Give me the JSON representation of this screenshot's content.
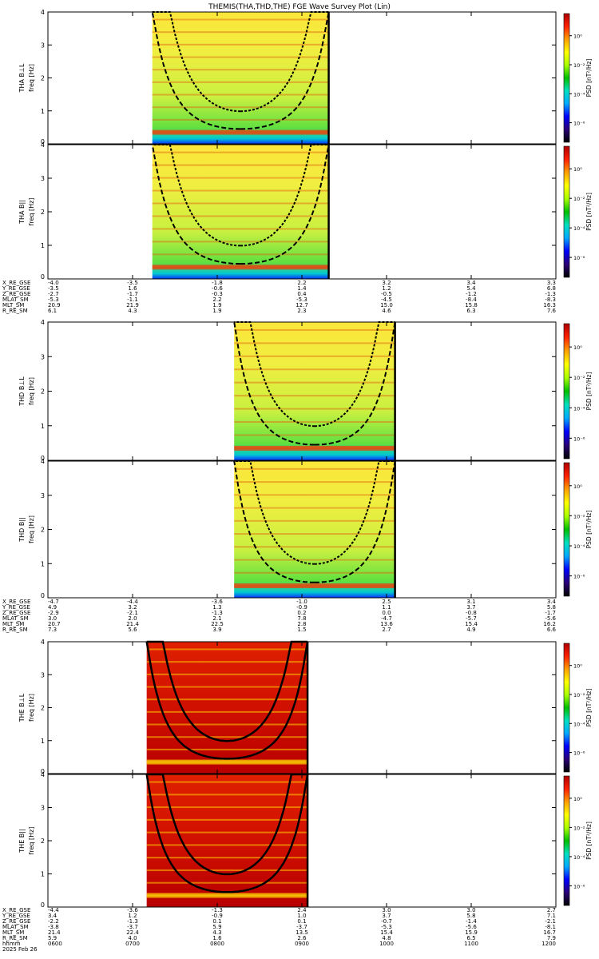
{
  "title": "THEMIS(THA,THD,THE) FGE Wave Survey Plot (Lin)",
  "colorbar": {
    "label": "PSD [nT²/Hz]",
    "ticks": [
      "10⁰",
      "10⁻²",
      "10⁻⁴",
      "10⁻⁶"
    ],
    "stops": [
      "#000000",
      "#2a0077",
      "#0000ff",
      "#00aaff",
      "#00e0c0",
      "#00c000",
      "#aaff00",
      "#ffff00",
      "#ffa000",
      "#ff2000",
      "#b00000"
    ]
  },
  "chart_data": [
    {
      "type": "heatmap",
      "probe": "THA",
      "panels": [
        {
          "ylabel": "THA B⊥L",
          "ylabel2": "freq [Hz]",
          "ylim": [
            0,
            4
          ],
          "yticks": [
            "0",
            "1",
            "2",
            "3",
            "4"
          ]
        },
        {
          "ylabel": "THA B||",
          "ylabel2": "freq [Hz]",
          "ylim": [
            0,
            4
          ],
          "yticks": [
            "0",
            "1",
            "2",
            "3",
            "4"
          ]
        }
      ],
      "data_range_hhmm": [
        "0714",
        "0919"
      ],
      "ephemeris": [
        {
          "name": "X_RE_GSE",
          "values": [
            "-4.0",
            "-3.5",
            "-1.8",
            "2.2",
            "3.2",
            "3.4",
            "3.3"
          ]
        },
        {
          "name": "Y_RE_GSE",
          "values": [
            "-3.5",
            "1.6",
            "-0.6",
            "1.4",
            "1.2",
            "5.4",
            "6.8"
          ]
        },
        {
          "name": "Z_RE_GSE",
          "values": [
            "-2.7",
            "-1.7",
            "-0.3",
            "0.4",
            "-0.5",
            "-1.2",
            "-1.3"
          ]
        },
        {
          "name": "MLAT_SM",
          "values": [
            "-5.3",
            "-1.1",
            "2.2",
            "-5.3",
            "-4.5",
            "-8.4",
            "-8.3"
          ]
        },
        {
          "name": "MLT_SM",
          "values": [
            "20.9",
            "21.9",
            "1.9",
            "12.7",
            "15.0",
            "15.8",
            "16.3"
          ]
        },
        {
          "name": "R_RE_SM",
          "values": [
            "6.1",
            "4.3",
            "1.9",
            "2.3",
            "4.6",
            "6.3",
            "7.6"
          ]
        }
      ]
    },
    {
      "type": "heatmap",
      "probe": "THD",
      "panels": [
        {
          "ylabel": "THD B⊥L",
          "ylabel2": "freq [Hz]",
          "ylim": [
            0,
            4
          ],
          "yticks": [
            "0",
            "1",
            "2",
            "3",
            "4"
          ]
        },
        {
          "ylabel": "THD B||",
          "ylabel2": "freq [Hz]",
          "ylim": [
            0,
            4
          ],
          "yticks": [
            "0",
            "1",
            "2",
            "3",
            "4"
          ]
        }
      ],
      "data_range_hhmm": [
        "0812",
        "1006"
      ],
      "ephemeris": [
        {
          "name": "X_RE_GSE",
          "values": [
            "-4.7",
            "-4.4",
            "-3.6",
            "-1.0",
            "2.5",
            "3.1",
            "3.4"
          ]
        },
        {
          "name": "Y_RE_GSE",
          "values": [
            "4.9",
            "3.2",
            "1.3",
            "-0.9",
            "1.1",
            "3.7",
            "5.8"
          ]
        },
        {
          "name": "Z_RE_GSE",
          "values": [
            "-2.9",
            "-2.1",
            "-1.3",
            "0.2",
            "0.0",
            "-0.8",
            "-1.7"
          ]
        },
        {
          "name": "MLAT_SM",
          "values": [
            "3.0",
            "2.0",
            "2.1",
            "7.8",
            "-4.7",
            "-5.7",
            "-5.6"
          ]
        },
        {
          "name": "MLT_SM",
          "values": [
            "20.7",
            "21.4",
            "22.5",
            "2.8",
            "13.6",
            "15.4",
            "16.2"
          ]
        },
        {
          "name": "R_RE_SM",
          "values": [
            "7.3",
            "5.6",
            "3.9",
            "1.5",
            "2.7",
            "4.9",
            "6.6"
          ]
        }
      ]
    },
    {
      "type": "heatmap",
      "probe": "THE",
      "panels": [
        {
          "ylabel": "THE B⊥L",
          "ylabel2": "freq [Hz]",
          "ylim": [
            0,
            4
          ],
          "yticks": [
            "0",
            "1",
            "2",
            "3",
            "4"
          ]
        },
        {
          "ylabel": "THE B||",
          "ylabel2": "freq [Hz]",
          "ylim": [
            0,
            4
          ],
          "yticks": [
            "0",
            "1",
            "2",
            "3",
            "4"
          ]
        }
      ],
      "data_range_hhmm": [
        "0710",
        "0904"
      ],
      "ephemeris": [
        {
          "name": "X_RE_GSE",
          "values": [
            "-4.4",
            "-3.6",
            "-1.3",
            "2.4",
            "3.0",
            "3.0",
            "2.7"
          ]
        },
        {
          "name": "Y_RE_GSE",
          "values": [
            "3.4",
            "1.2",
            "-0.9",
            "1.0",
            "3.7",
            "5.8",
            "7.1"
          ]
        },
        {
          "name": "Z_RE_GSE",
          "values": [
            "-2.2",
            "-1.3",
            "0.1",
            "0.1",
            "-0.7",
            "-1.4",
            "-2.1"
          ]
        },
        {
          "name": "MLAT_SM",
          "values": [
            "-3.8",
            "-3.7",
            "5.9",
            "-3.7",
            "-5.3",
            "-5.6",
            "-8.1"
          ]
        },
        {
          "name": "MLT_SM",
          "values": [
            "21.4",
            "22.4",
            "4.3",
            "13.5",
            "15.4",
            "15.9",
            "16.7"
          ]
        },
        {
          "name": "R_RE_SM",
          "values": [
            "5.9",
            "4.0",
            "1.6",
            "2.6",
            "4.8",
            "6.5",
            "7.9"
          ]
        }
      ],
      "time_axis": {
        "name": "hhmm",
        "values": [
          "0600",
          "0700",
          "0800",
          "0900",
          "1000",
          "1100",
          "1200"
        ]
      },
      "date": "2025 Feb 26"
    }
  ]
}
